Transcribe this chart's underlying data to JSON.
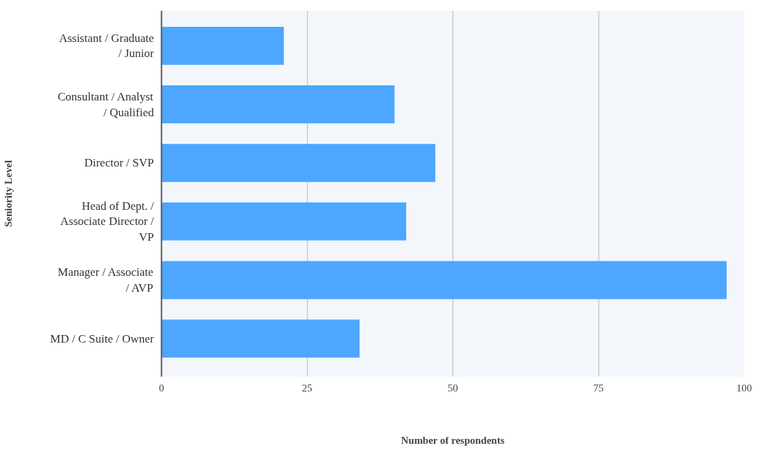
{
  "chart_data": {
    "type": "bar",
    "orientation": "horizontal",
    "xlabel": "Number of respondents",
    "ylabel": "Seniority Level",
    "categories": [
      "Assistant / Graduate / Junior",
      "Consultant / Analyst / Qualified",
      "Director / SVP",
      "Head of Dept. / Associate Director / VP",
      "Manager / Associate / AVP",
      "MD / C Suite / Owner"
    ],
    "values": [
      21,
      40,
      47,
      42,
      97,
      34
    ],
    "color": "#4da6ff",
    "xlim": [
      0,
      100
    ],
    "xticks": [
      0,
      25,
      50,
      75,
      100
    ],
    "grid": "x"
  }
}
